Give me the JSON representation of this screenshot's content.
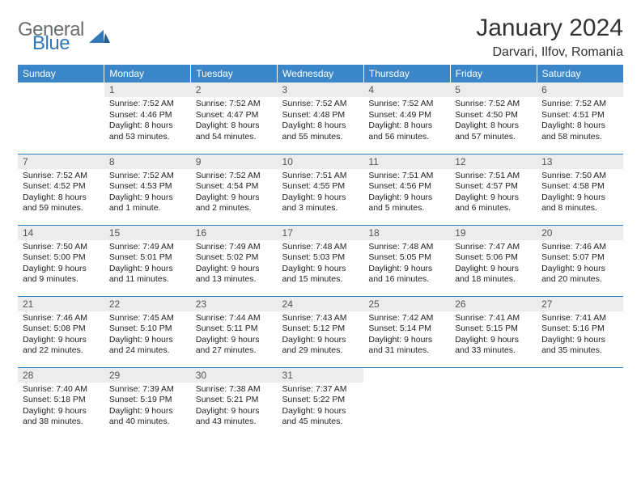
{
  "brand": {
    "word1": "General",
    "word2": "Blue",
    "color1": "#6a6e70",
    "color2": "#2f78b9"
  },
  "title": "January 2024",
  "location": "Darvari, Ilfov, Romania",
  "colors": {
    "header_bg": "#3a86c8",
    "header_fg": "#ffffff",
    "daynum_bg": "#ececec",
    "row_border": "#2f78b9"
  },
  "weekday_labels": [
    "Sunday",
    "Monday",
    "Tuesday",
    "Wednesday",
    "Thursday",
    "Friday",
    "Saturday"
  ],
  "weeks": [
    [
      {
        "day": "",
        "lines": []
      },
      {
        "day": "1",
        "lines": [
          "Sunrise: 7:52 AM",
          "Sunset: 4:46 PM",
          "Daylight: 8 hours",
          "and 53 minutes."
        ]
      },
      {
        "day": "2",
        "lines": [
          "Sunrise: 7:52 AM",
          "Sunset: 4:47 PM",
          "Daylight: 8 hours",
          "and 54 minutes."
        ]
      },
      {
        "day": "3",
        "lines": [
          "Sunrise: 7:52 AM",
          "Sunset: 4:48 PM",
          "Daylight: 8 hours",
          "and 55 minutes."
        ]
      },
      {
        "day": "4",
        "lines": [
          "Sunrise: 7:52 AM",
          "Sunset: 4:49 PM",
          "Daylight: 8 hours",
          "and 56 minutes."
        ]
      },
      {
        "day": "5",
        "lines": [
          "Sunrise: 7:52 AM",
          "Sunset: 4:50 PM",
          "Daylight: 8 hours",
          "and 57 minutes."
        ]
      },
      {
        "day": "6",
        "lines": [
          "Sunrise: 7:52 AM",
          "Sunset: 4:51 PM",
          "Daylight: 8 hours",
          "and 58 minutes."
        ]
      }
    ],
    [
      {
        "day": "7",
        "lines": [
          "Sunrise: 7:52 AM",
          "Sunset: 4:52 PM",
          "Daylight: 8 hours",
          "and 59 minutes."
        ]
      },
      {
        "day": "8",
        "lines": [
          "Sunrise: 7:52 AM",
          "Sunset: 4:53 PM",
          "Daylight: 9 hours",
          "and 1 minute."
        ]
      },
      {
        "day": "9",
        "lines": [
          "Sunrise: 7:52 AM",
          "Sunset: 4:54 PM",
          "Daylight: 9 hours",
          "and 2 minutes."
        ]
      },
      {
        "day": "10",
        "lines": [
          "Sunrise: 7:51 AM",
          "Sunset: 4:55 PM",
          "Daylight: 9 hours",
          "and 3 minutes."
        ]
      },
      {
        "day": "11",
        "lines": [
          "Sunrise: 7:51 AM",
          "Sunset: 4:56 PM",
          "Daylight: 9 hours",
          "and 5 minutes."
        ]
      },
      {
        "day": "12",
        "lines": [
          "Sunrise: 7:51 AM",
          "Sunset: 4:57 PM",
          "Daylight: 9 hours",
          "and 6 minutes."
        ]
      },
      {
        "day": "13",
        "lines": [
          "Sunrise: 7:50 AM",
          "Sunset: 4:58 PM",
          "Daylight: 9 hours",
          "and 8 minutes."
        ]
      }
    ],
    [
      {
        "day": "14",
        "lines": [
          "Sunrise: 7:50 AM",
          "Sunset: 5:00 PM",
          "Daylight: 9 hours",
          "and 9 minutes."
        ]
      },
      {
        "day": "15",
        "lines": [
          "Sunrise: 7:49 AM",
          "Sunset: 5:01 PM",
          "Daylight: 9 hours",
          "and 11 minutes."
        ]
      },
      {
        "day": "16",
        "lines": [
          "Sunrise: 7:49 AM",
          "Sunset: 5:02 PM",
          "Daylight: 9 hours",
          "and 13 minutes."
        ]
      },
      {
        "day": "17",
        "lines": [
          "Sunrise: 7:48 AM",
          "Sunset: 5:03 PM",
          "Daylight: 9 hours",
          "and 15 minutes."
        ]
      },
      {
        "day": "18",
        "lines": [
          "Sunrise: 7:48 AM",
          "Sunset: 5:05 PM",
          "Daylight: 9 hours",
          "and 16 minutes."
        ]
      },
      {
        "day": "19",
        "lines": [
          "Sunrise: 7:47 AM",
          "Sunset: 5:06 PM",
          "Daylight: 9 hours",
          "and 18 minutes."
        ]
      },
      {
        "day": "20",
        "lines": [
          "Sunrise: 7:46 AM",
          "Sunset: 5:07 PM",
          "Daylight: 9 hours",
          "and 20 minutes."
        ]
      }
    ],
    [
      {
        "day": "21",
        "lines": [
          "Sunrise: 7:46 AM",
          "Sunset: 5:08 PM",
          "Daylight: 9 hours",
          "and 22 minutes."
        ]
      },
      {
        "day": "22",
        "lines": [
          "Sunrise: 7:45 AM",
          "Sunset: 5:10 PM",
          "Daylight: 9 hours",
          "and 24 minutes."
        ]
      },
      {
        "day": "23",
        "lines": [
          "Sunrise: 7:44 AM",
          "Sunset: 5:11 PM",
          "Daylight: 9 hours",
          "and 27 minutes."
        ]
      },
      {
        "day": "24",
        "lines": [
          "Sunrise: 7:43 AM",
          "Sunset: 5:12 PM",
          "Daylight: 9 hours",
          "and 29 minutes."
        ]
      },
      {
        "day": "25",
        "lines": [
          "Sunrise: 7:42 AM",
          "Sunset: 5:14 PM",
          "Daylight: 9 hours",
          "and 31 minutes."
        ]
      },
      {
        "day": "26",
        "lines": [
          "Sunrise: 7:41 AM",
          "Sunset: 5:15 PM",
          "Daylight: 9 hours",
          "and 33 minutes."
        ]
      },
      {
        "day": "27",
        "lines": [
          "Sunrise: 7:41 AM",
          "Sunset: 5:16 PM",
          "Daylight: 9 hours",
          "and 35 minutes."
        ]
      }
    ],
    [
      {
        "day": "28",
        "lines": [
          "Sunrise: 7:40 AM",
          "Sunset: 5:18 PM",
          "Daylight: 9 hours",
          "and 38 minutes."
        ]
      },
      {
        "day": "29",
        "lines": [
          "Sunrise: 7:39 AM",
          "Sunset: 5:19 PM",
          "Daylight: 9 hours",
          "and 40 minutes."
        ]
      },
      {
        "day": "30",
        "lines": [
          "Sunrise: 7:38 AM",
          "Sunset: 5:21 PM",
          "Daylight: 9 hours",
          "and 43 minutes."
        ]
      },
      {
        "day": "31",
        "lines": [
          "Sunrise: 7:37 AM",
          "Sunset: 5:22 PM",
          "Daylight: 9 hours",
          "and 45 minutes."
        ]
      },
      {
        "day": "",
        "lines": []
      },
      {
        "day": "",
        "lines": []
      },
      {
        "day": "",
        "lines": []
      }
    ]
  ]
}
